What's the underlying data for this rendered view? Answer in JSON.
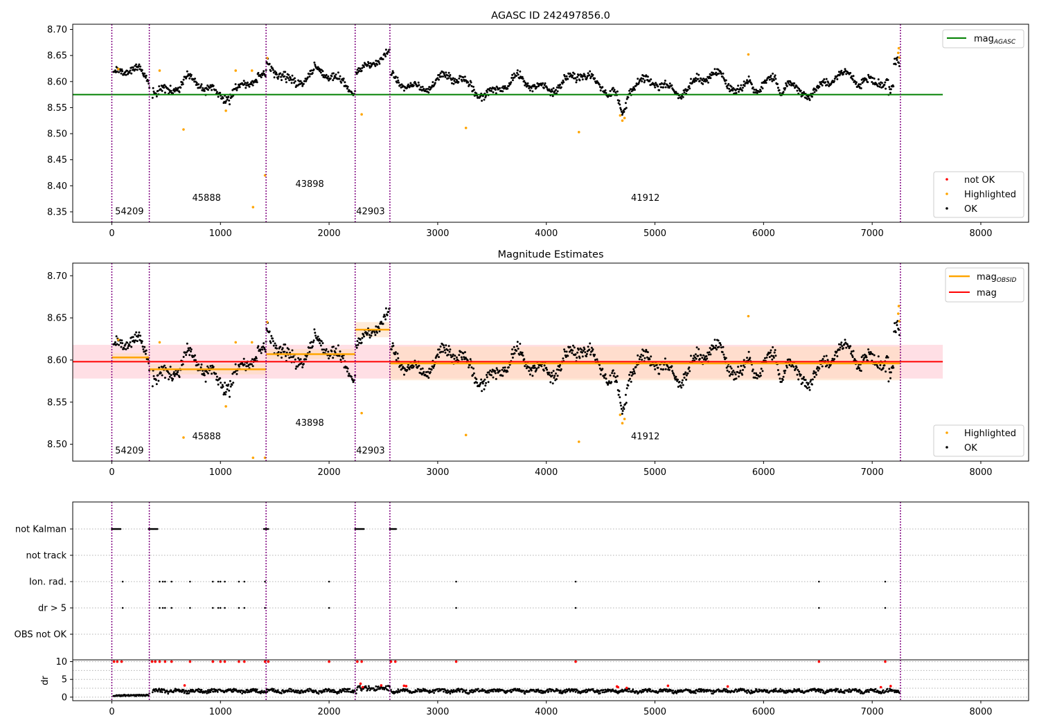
{
  "figure": {
    "colors": {
      "ok": "#000000",
      "highlighted": "#ffa500",
      "not_ok": "#ff0000",
      "mag_agasc": "#008000",
      "mag": "#ff0000",
      "mag_obsid": "#ffa500",
      "boundary": "#800080",
      "gridline": "#b0b0b0",
      "band_mag": "#ffc0cb",
      "band_obsid": "#ffdab9"
    },
    "x_axis": {
      "range": [
        -360,
        8440
      ],
      "ticks": [
        0,
        1000,
        2000,
        3000,
        4000,
        5000,
        6000,
        7000,
        8000
      ],
      "tick_labels": [
        "0",
        "1000",
        "2000",
        "3000",
        "4000",
        "5000",
        "6000",
        "7000",
        "8000"
      ]
    },
    "obsids": [
      {
        "id": "54209",
        "start": 0,
        "end": 345
      },
      {
        "id": "45888",
        "start": 345,
        "end": 1420
      },
      {
        "id": "43898",
        "start": 1420,
        "end": 2240
      },
      {
        "id": "42903",
        "start": 2240,
        "end": 2560
      },
      {
        "id": "41912",
        "start": 2560,
        "end": 7260
      }
    ]
  },
  "chart_data": [
    {
      "type": "scatter",
      "title": "AGASC ID 242497856.0",
      "ylim": [
        8.33,
        8.71
      ],
      "y_ticks": [
        "8.35",
        "8.40",
        "8.45",
        "8.50",
        "8.55",
        "8.60",
        "8.65",
        "8.70"
      ],
      "y_tick_values": [
        8.35,
        8.4,
        8.45,
        8.5,
        8.55,
        8.6,
        8.65,
        8.7
      ],
      "mag_agasc": {
        "value": 8.575,
        "x_range": [
          -360,
          7650
        ]
      },
      "obsid_labels": [
        {
          "text": "54209",
          "x": 30,
          "y": 8.345
        },
        {
          "text": "45888",
          "x": 740,
          "y": 8.371
        },
        {
          "text": "43898",
          "x": 1690,
          "y": 8.398
        },
        {
          "text": "42903",
          "x": 2250,
          "y": 8.345
        },
        {
          "text": "41912",
          "x": 4780,
          "y": 8.371
        }
      ],
      "highlighted_points": [
        [
          60,
          8.624
        ],
        [
          440,
          8.621
        ],
        [
          660,
          8.508
        ],
        [
          1050,
          8.544
        ],
        [
          1140,
          8.621
        ],
        [
          1290,
          8.621
        ],
        [
          1300,
          8.359
        ],
        [
          1410,
          8.42
        ],
        [
          1430,
          8.645
        ],
        [
          2300,
          8.537
        ],
        [
          3260,
          8.511
        ],
        [
          4300,
          8.503
        ],
        [
          4680,
          8.535
        ],
        [
          4700,
          8.525
        ],
        [
          4720,
          8.53
        ],
        [
          5860,
          8.652
        ],
        [
          7240,
          8.655
        ],
        [
          7245,
          8.664
        ],
        [
          7250,
          8.646
        ]
      ],
      "legend_lines": [
        {
          "label": "mag",
          "sub": "AGASC"
        }
      ],
      "legend_points": [
        "not OK",
        "Highlighted",
        "OK"
      ]
    },
    {
      "type": "scatter",
      "title": "Magnitude Estimates",
      "ylim": [
        8.48,
        8.715
      ],
      "y_ticks": [
        "8.50",
        "8.55",
        "8.60",
        "8.65",
        "8.70"
      ],
      "y_tick_values": [
        8.5,
        8.55,
        8.6,
        8.65,
        8.7
      ],
      "mag": {
        "value": 8.598,
        "band": [
          8.578,
          8.618
        ],
        "x_range": [
          -360,
          7650
        ]
      },
      "mag_obsid": [
        {
          "obsid": "54209",
          "start": 0,
          "end": 345,
          "value": 8.603,
          "band": [
            8.598,
            8.608
          ]
        },
        {
          "obsid": "45888",
          "start": 345,
          "end": 1420,
          "value": 8.589,
          "band": [
            8.583,
            8.595
          ]
        },
        {
          "obsid": "43898",
          "start": 1420,
          "end": 2240,
          "value": 8.607,
          "band": [
            8.601,
            8.613
          ]
        },
        {
          "obsid": "42903",
          "start": 2240,
          "end": 2560,
          "value": 8.636,
          "band": [
            8.627,
            8.645
          ]
        },
        {
          "obsid": "41912",
          "start": 2560,
          "end": 7260,
          "value": 8.596,
          "band": [
            8.576,
            8.616
          ]
        }
      ],
      "obsid_labels": [
        {
          "text": "54209",
          "x": 30,
          "y": 8.489
        },
        {
          "text": "45888",
          "x": 740,
          "y": 8.506
        },
        {
          "text": "43898",
          "x": 1690,
          "y": 8.522
        },
        {
          "text": "42903",
          "x": 2250,
          "y": 8.489
        },
        {
          "text": "41912",
          "x": 4780,
          "y": 8.506
        }
      ],
      "highlighted_points": [
        [
          60,
          8.624
        ],
        [
          440,
          8.621
        ],
        [
          660,
          8.508
        ],
        [
          1050,
          8.545
        ],
        [
          1140,
          8.621
        ],
        [
          1290,
          8.621
        ],
        [
          1300,
          8.484
        ],
        [
          1410,
          8.484
        ],
        [
          1430,
          8.645
        ],
        [
          2300,
          8.537
        ],
        [
          3260,
          8.511
        ],
        [
          4300,
          8.503
        ],
        [
          4680,
          8.535
        ],
        [
          4700,
          8.525
        ],
        [
          4720,
          8.53
        ],
        [
          5860,
          8.652
        ],
        [
          7240,
          8.655
        ],
        [
          7245,
          8.664
        ],
        [
          7250,
          8.646
        ]
      ],
      "legend_lines": [
        {
          "label": "mag",
          "sub": "OBSID"
        },
        {
          "label": "mag",
          "sub": ""
        }
      ],
      "legend_points": [
        "Highlighted",
        "OK"
      ]
    },
    {
      "type": "scatter",
      "title": "",
      "flag_rows": [
        "not Kalman",
        "not track",
        "Ion. rad.",
        "dr > 5",
        "OBS not OK"
      ],
      "flag_points": {
        "not Kalman": [
          [
            0,
            80
          ],
          [
            340,
            420
          ],
          [
            1400,
            1440
          ],
          [
            2240,
            2320
          ],
          [
            2560,
            2620
          ]
        ],
        "not track": [],
        "Ion. rad.": [
          100,
          440,
          470,
          490,
          550,
          720,
          930,
          980,
          1000,
          1040,
          1170,
          1220,
          1410,
          2000,
          3170,
          4270,
          6510,
          7120
        ],
        "dr > 5": [
          100,
          440,
          470,
          490,
          550,
          720,
          930,
          980,
          1000,
          1040,
          1170,
          1220,
          1410,
          2000,
          3170,
          4270,
          6510,
          7120
        ],
        "OBS not OK": []
      },
      "dr_ylabel": "dr",
      "dr_ylim": [
        -1,
        10.5
      ],
      "dr_ticks": [
        "0",
        "5",
        "10"
      ],
      "dr_tick_values": [
        0,
        5,
        10
      ],
      "dr_red_points": [
        [
          20,
          10
        ],
        [
          50,
          10
        ],
        [
          90,
          10
        ],
        [
          370,
          10
        ],
        [
          400,
          10
        ],
        [
          440,
          10
        ],
        [
          490,
          10
        ],
        [
          550,
          10
        ],
        [
          720,
          10
        ],
        [
          930,
          10
        ],
        [
          1000,
          10
        ],
        [
          1040,
          10
        ],
        [
          1170,
          10
        ],
        [
          1220,
          10
        ],
        [
          1410,
          10
        ],
        [
          1440,
          10
        ],
        [
          2000,
          10
        ],
        [
          2260,
          10
        ],
        [
          2300,
          10
        ],
        [
          2570,
          10
        ],
        [
          2610,
          10
        ],
        [
          3170,
          10
        ],
        [
          4270,
          10
        ],
        [
          6510,
          10
        ],
        [
          7120,
          10
        ],
        [
          670,
          3.3
        ],
        [
          2290,
          3.8
        ],
        [
          2310,
          2.8
        ],
        [
          2480,
          3.3
        ],
        [
          2690,
          3.2
        ],
        [
          2710,
          3.1
        ],
        [
          4650,
          3
        ],
        [
          4660,
          2.8
        ],
        [
          4740,
          2.6
        ],
        [
          5120,
          3.2
        ],
        [
          5670,
          3
        ],
        [
          7080,
          2.8
        ],
        [
          7170,
          3.1
        ]
      ]
    }
  ]
}
